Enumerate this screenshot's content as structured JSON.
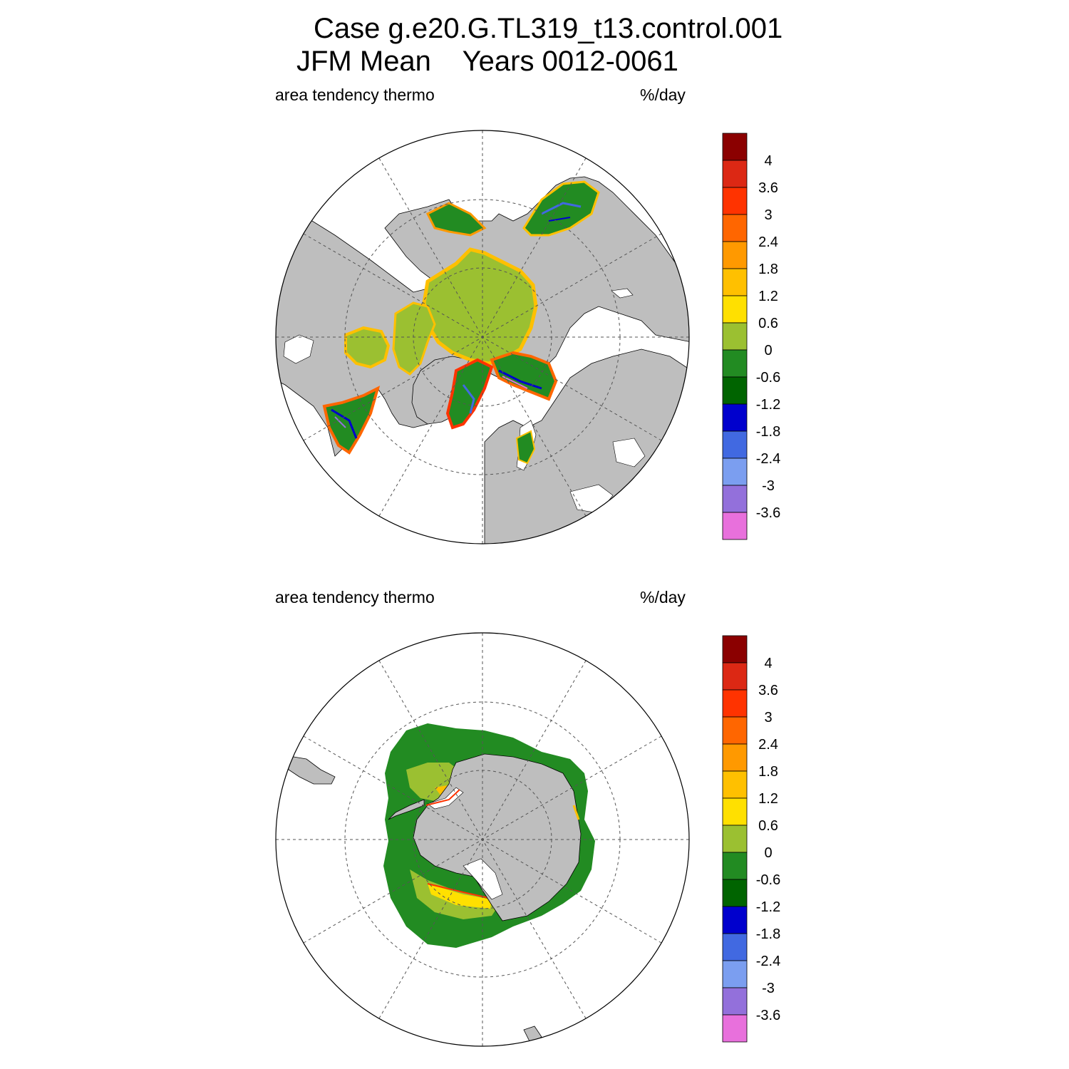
{
  "title": {
    "line1": "Case g.e20.G.TL319_t13.control.001",
    "line2_left": "JFM Mean",
    "line2_right": "Years 0012-0061"
  },
  "panels": [
    {
      "id": "north",
      "hemisphere": "north",
      "variable": "area tendency thermo",
      "units": "%/day"
    },
    {
      "id": "south",
      "hemisphere": "south",
      "variable": "area tendency thermo",
      "units": "%/day"
    }
  ],
  "colors": {
    "land": "#bebebe",
    "ocean": "#ffffff",
    "frame": "#000000",
    "grid": "#555555"
  },
  "colorbar": {
    "labels": [
      "4",
      "3.6",
      "3",
      "2.4",
      "1.8",
      "1.2",
      "0.6",
      "0",
      "-0.6",
      "-1.2",
      "-1.8",
      "-2.4",
      "-3",
      "-3.6"
    ],
    "colors": [
      "#8b0000",
      "#dc2814",
      "#ff3300",
      "#ff6600",
      "#ff9900",
      "#ffc000",
      "#ffe000",
      "#9bc031",
      "#228b22",
      "#006400",
      "#0000cd",
      "#4169e1",
      "#7b9ef0",
      "#9370db",
      "#e870dc"
    ]
  }
}
